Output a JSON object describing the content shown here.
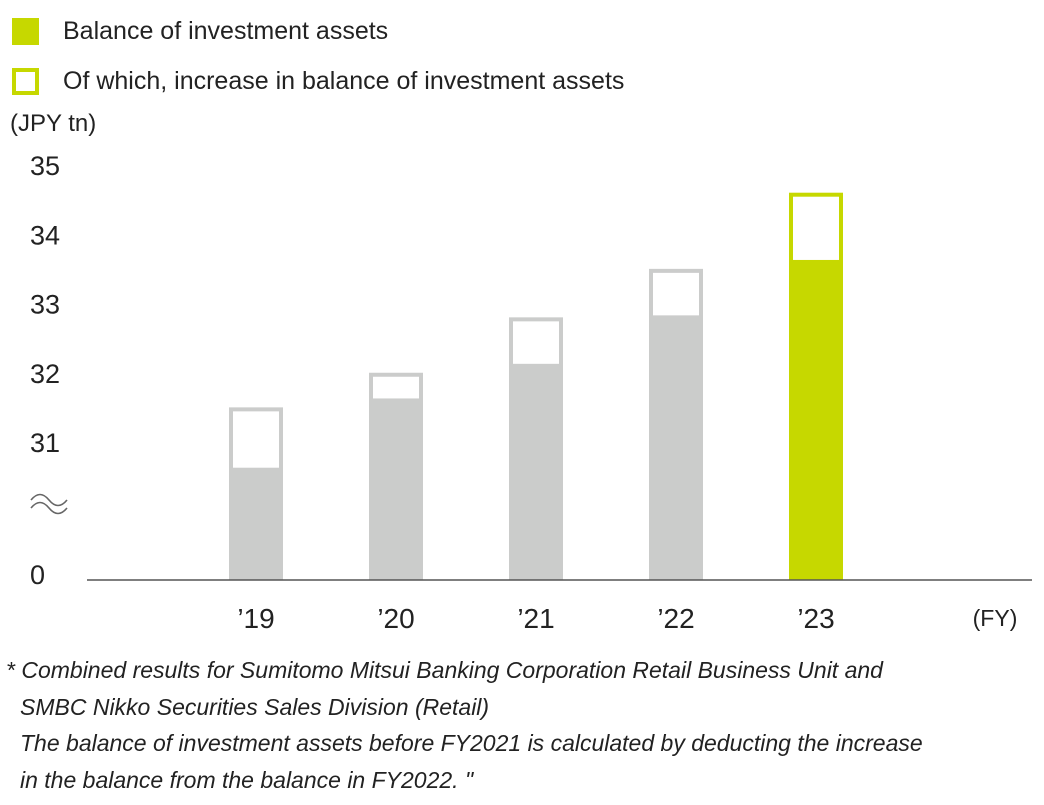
{
  "legend": {
    "items": [
      {
        "label": "Balance of investment assets",
        "color": "#c6d800",
        "style": "filled"
      },
      {
        "label": "Of which, increase in balance of investment assets",
        "color": "#c6d800",
        "style": "outline"
      }
    ]
  },
  "chart_data": {
    "type": "bar",
    "stacked": true,
    "unit_label": "(JPY tn)",
    "x_unit_label": "(FY)",
    "categories": [
      "’19",
      "’20",
      "’21",
      "’22",
      "’23"
    ],
    "series": [
      {
        "name": "Balance of investment assets",
        "values": [
          30.6,
          31.6,
          32.1,
          32.8,
          33.6
        ]
      },
      {
        "name": "Of which, increase in balance of investment assets",
        "values": [
          0.9,
          0.4,
          0.7,
          0.7,
          1.0
        ]
      }
    ],
    "yticks": [
      0,
      31,
      32,
      33,
      34,
      35
    ],
    "axis_break": true,
    "ylim": [
      30.1,
      35
    ],
    "colors": {
      "past": "#cbcccb",
      "highlight": "#c6d800",
      "axis": "#555555"
    },
    "highlight_category": "’23"
  },
  "footnote": {
    "lines": [
      "* Combined results for Sumitomo Mitsui Banking Corporation Retail Business Unit and",
      "SMBC Nikko Securities Sales Division (Retail)",
      "The balance of investment assets before FY2021 is calculated by deducting the increase",
      "in the balance from the balance in FY2022. \""
    ]
  }
}
